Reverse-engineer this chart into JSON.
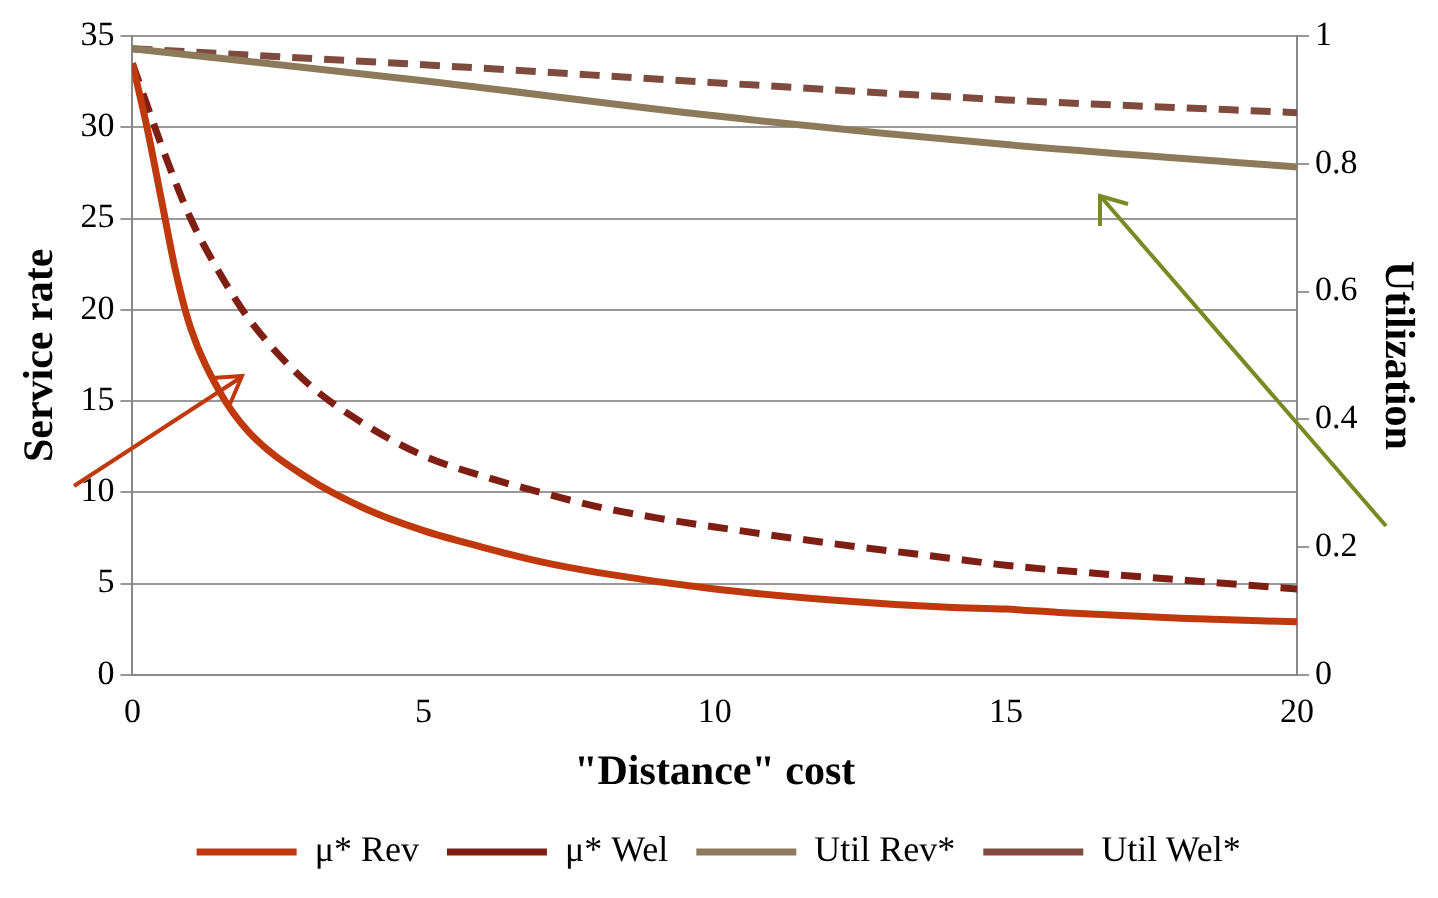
{
  "chart_data": {
    "type": "line",
    "xlabel": "\"Distance\" cost",
    "ylabel": "Service rate",
    "y2label": "Utilization",
    "xlim": [
      0,
      20
    ],
    "xticks": [
      0,
      5,
      10,
      15,
      20
    ],
    "ylim": [
      0,
      35
    ],
    "yticks": [
      0,
      5,
      10,
      15,
      20,
      25,
      30,
      35
    ],
    "y2lim": [
      0,
      1
    ],
    "y2ticks": [
      0,
      0.2,
      0.4,
      0.6,
      0.8,
      1
    ],
    "grid": "y",
    "legend": "bottom",
    "marker": "none",
    "series": [
      {
        "name": "μ* Rev",
        "color": "#c0390c",
        "line_style": "solid",
        "x": [
          0,
          0.25,
          0.5,
          0.75,
          1,
          1.5,
          2,
          3,
          4,
          5,
          6,
          7,
          8,
          10,
          12,
          14,
          15,
          16,
          18,
          20
        ],
        "values": [
          33.5,
          30,
          26,
          22,
          19,
          15.5,
          13.3,
          10.8,
          9.1,
          7.9,
          7.0,
          6.2,
          5.6,
          4.7,
          4.1,
          3.7,
          3.6,
          3.4,
          3.1,
          2.9
        ]
      },
      {
        "name": "μ* Wel",
        "color": "#7f1f14",
        "line_style": "dashed",
        "x": [
          0,
          0.5,
          1,
          1.5,
          2,
          3,
          4,
          5,
          6,
          7,
          8,
          9,
          10,
          12,
          14,
          15,
          16,
          18,
          20
        ],
        "values": [
          33.5,
          29,
          25,
          22,
          19.5,
          16,
          13.7,
          12,
          10.9,
          10.0,
          9.2,
          8.6,
          8.1,
          7.2,
          6.4,
          6.0,
          5.7,
          5.2,
          4.7
        ]
      },
      {
        "name": "Util Rev*",
        "color": "#8c7a5b",
        "line_style": "solid",
        "axis": "y2",
        "x": [
          0,
          5,
          10,
          15,
          20
        ],
        "values": [
          0.98,
          0.93,
          0.875,
          0.83,
          0.795
        ]
      },
      {
        "name": "Util Wel*",
        "color": "#7f4b3e",
        "line_style": "dashed",
        "axis": "y2",
        "x": [
          0,
          5,
          10,
          15,
          20
        ],
        "values": [
          0.98,
          0.955,
          0.927,
          0.9,
          0.88
        ]
      }
    ]
  }
}
